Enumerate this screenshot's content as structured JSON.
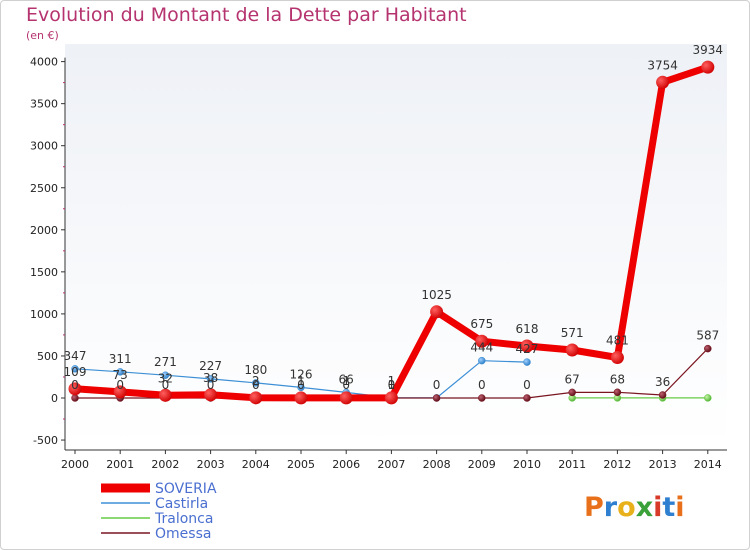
{
  "chart_data": {
    "type": "line",
    "title": "Evolution du Montant de la Dette par Habitant",
    "subtitle": "(en €)",
    "xlabel": "",
    "ylabel": "",
    "x": [
      "2000",
      "2001",
      "2002",
      "2003",
      "2004",
      "2005",
      "2006",
      "2007",
      "2008",
      "2009",
      "2010",
      "2011",
      "2012",
      "2013",
      "2014"
    ],
    "ylim": [
      -500,
      4000
    ],
    "yticks": [
      -500,
      0,
      500,
      1000,
      1500,
      2000,
      2500,
      3000,
      3500,
      4000
    ],
    "grid": false,
    "legend_position": "bottom-left",
    "series": [
      {
        "name": "SOVERIA",
        "color": "#ee0000",
        "values": [
          109,
          73,
          32,
          38,
          2,
          1,
          1,
          1,
          1025,
          675,
          618,
          571,
          481,
          3754,
          3934
        ],
        "labels": [
          "109",
          "73",
          "32",
          "38",
          "2",
          "1",
          "1",
          "1",
          "1025",
          "675",
          "618",
          "571",
          "481",
          "3754",
          "3934"
        ]
      },
      {
        "name": "Castirla",
        "color": "#3d8fd6",
        "values": [
          347,
          311,
          271,
          227,
          180,
          126,
          66,
          1,
          1,
          444,
          427,
          null,
          null,
          null,
          null
        ],
        "labels": [
          "347",
          "311",
          "271",
          "227",
          "180",
          "126",
          "66",
          "1",
          "",
          "444",
          "427",
          "",
          "",
          "",
          ""
        ]
      },
      {
        "name": "Tralonca",
        "color": "#66cc44",
        "values": [
          null,
          null,
          null,
          null,
          null,
          null,
          null,
          null,
          null,
          null,
          null,
          1,
          1,
          1,
          1
        ],
        "labels": [
          "",
          "",
          "",
          "",
          "",
          "",
          "",
          "",
          "",
          "",
          "",
          "",
          "",
          "",
          ""
        ]
      },
      {
        "name": "Omessa",
        "color": "#7a1520",
        "values": [
          0,
          0,
          0,
          0,
          0,
          0,
          0,
          0,
          0,
          0,
          0,
          67,
          68,
          36,
          587
        ],
        "labels": [
          "0",
          "0",
          "0",
          "0",
          "0",
          "0",
          "0",
          "0",
          "0",
          "0",
          "0",
          "67",
          "68",
          "36",
          "587"
        ]
      }
    ]
  },
  "logo": {
    "text": "Proxiti"
  }
}
